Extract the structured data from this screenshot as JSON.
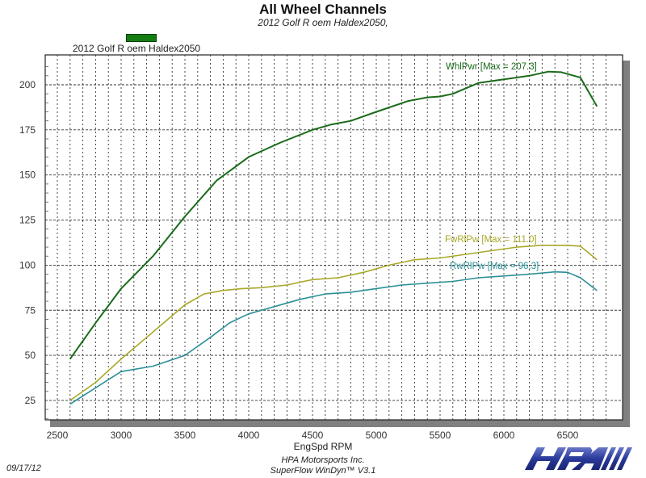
{
  "header": {
    "title": "All Wheel Channels",
    "subtitle": "2012 Golf R oem Haldex2050,"
  },
  "legend": {
    "label": "2012 Golf R oem Haldex2050",
    "swatch_color": "#137d13"
  },
  "axes": {
    "xlabel": "EngSpd RPM",
    "x_ticks": [
      "2500",
      "3000",
      "3500",
      "4000",
      "4500",
      "5000",
      "5500",
      "6000",
      "6500"
    ],
    "y_ticks": [
      "25",
      "50",
      "75",
      "100",
      "125",
      "150",
      "175",
      "200"
    ]
  },
  "annotations": {
    "whlpwr": "WhlPwr [Max = 207.3]",
    "fwrlpw": "FwRlPw [Max = 111.0]",
    "rwrlpw": "RwRlPw [Max = 96.3]"
  },
  "footer": {
    "date": "09/17/12",
    "company": "HPA Motorsports Inc.",
    "software": "SuperFlow WinDyn™ V3.1",
    "logo_text": "HPA"
  },
  "colors": {
    "whlpwr": "#1a6b1a",
    "fwrlpw": "#a8a828",
    "rwrlpw": "#2a8f96",
    "grid": "#333333",
    "shadow": "#808080",
    "logo": "#2a3a9a"
  },
  "chart_data": {
    "type": "line",
    "title": "All Wheel Channels",
    "subtitle": "2012 Golf R oem Haldex2050,",
    "xlabel": "EngSpd RPM",
    "ylabel": "",
    "xlim": [
      2400,
      6900
    ],
    "ylim": [
      15,
      215
    ],
    "grid": true,
    "legend_position": "top-left",
    "legend": [
      "2012 Golf R oem Haldex2050"
    ],
    "series": [
      {
        "name": "WhlPwr",
        "max": 207.3,
        "x": [
          2600,
          2800,
          3000,
          3250,
          3500,
          3750,
          4000,
          4250,
          4500,
          4650,
          4800,
          5000,
          5250,
          5400,
          5500,
          5600,
          5800,
          6000,
          6200,
          6350,
          6450,
          6600,
          6730
        ],
        "values": [
          48,
          68,
          87,
          105,
          127,
          147,
          160,
          168,
          175,
          178,
          180,
          185,
          191,
          193,
          193.5,
          195,
          201,
          203,
          205,
          207.3,
          207,
          204,
          188
        ]
      },
      {
        "name": "FwRlPw",
        "max": 111.0,
        "x": [
          2600,
          2800,
          3000,
          3250,
          3500,
          3650,
          3800,
          3950,
          4100,
          4300,
          4500,
          4700,
          4900,
          5100,
          5300,
          5500,
          5700,
          5900,
          6100,
          6300,
          6500,
          6600,
          6730
        ],
        "values": [
          25,
          35,
          48,
          63,
          78,
          84,
          86,
          87,
          87.5,
          89,
          92,
          93,
          96,
          100,
          103,
          104,
          106,
          108,
          110,
          111,
          111,
          110.5,
          103
        ]
      },
      {
        "name": "RwRlPw",
        "max": 96.3,
        "x": [
          2600,
          2800,
          3000,
          3250,
          3500,
          3700,
          3850,
          4000,
          4200,
          4400,
          4600,
          4800,
          5000,
          5200,
          5400,
          5600,
          5800,
          6000,
          6200,
          6400,
          6500,
          6600,
          6730
        ],
        "values": [
          23,
          32,
          41,
          44,
          50,
          60,
          68,
          73,
          77,
          81,
          84,
          85,
          87,
          89,
          90,
          91,
          93,
          94,
          95,
          96.3,
          96,
          93,
          86
        ]
      }
    ]
  }
}
